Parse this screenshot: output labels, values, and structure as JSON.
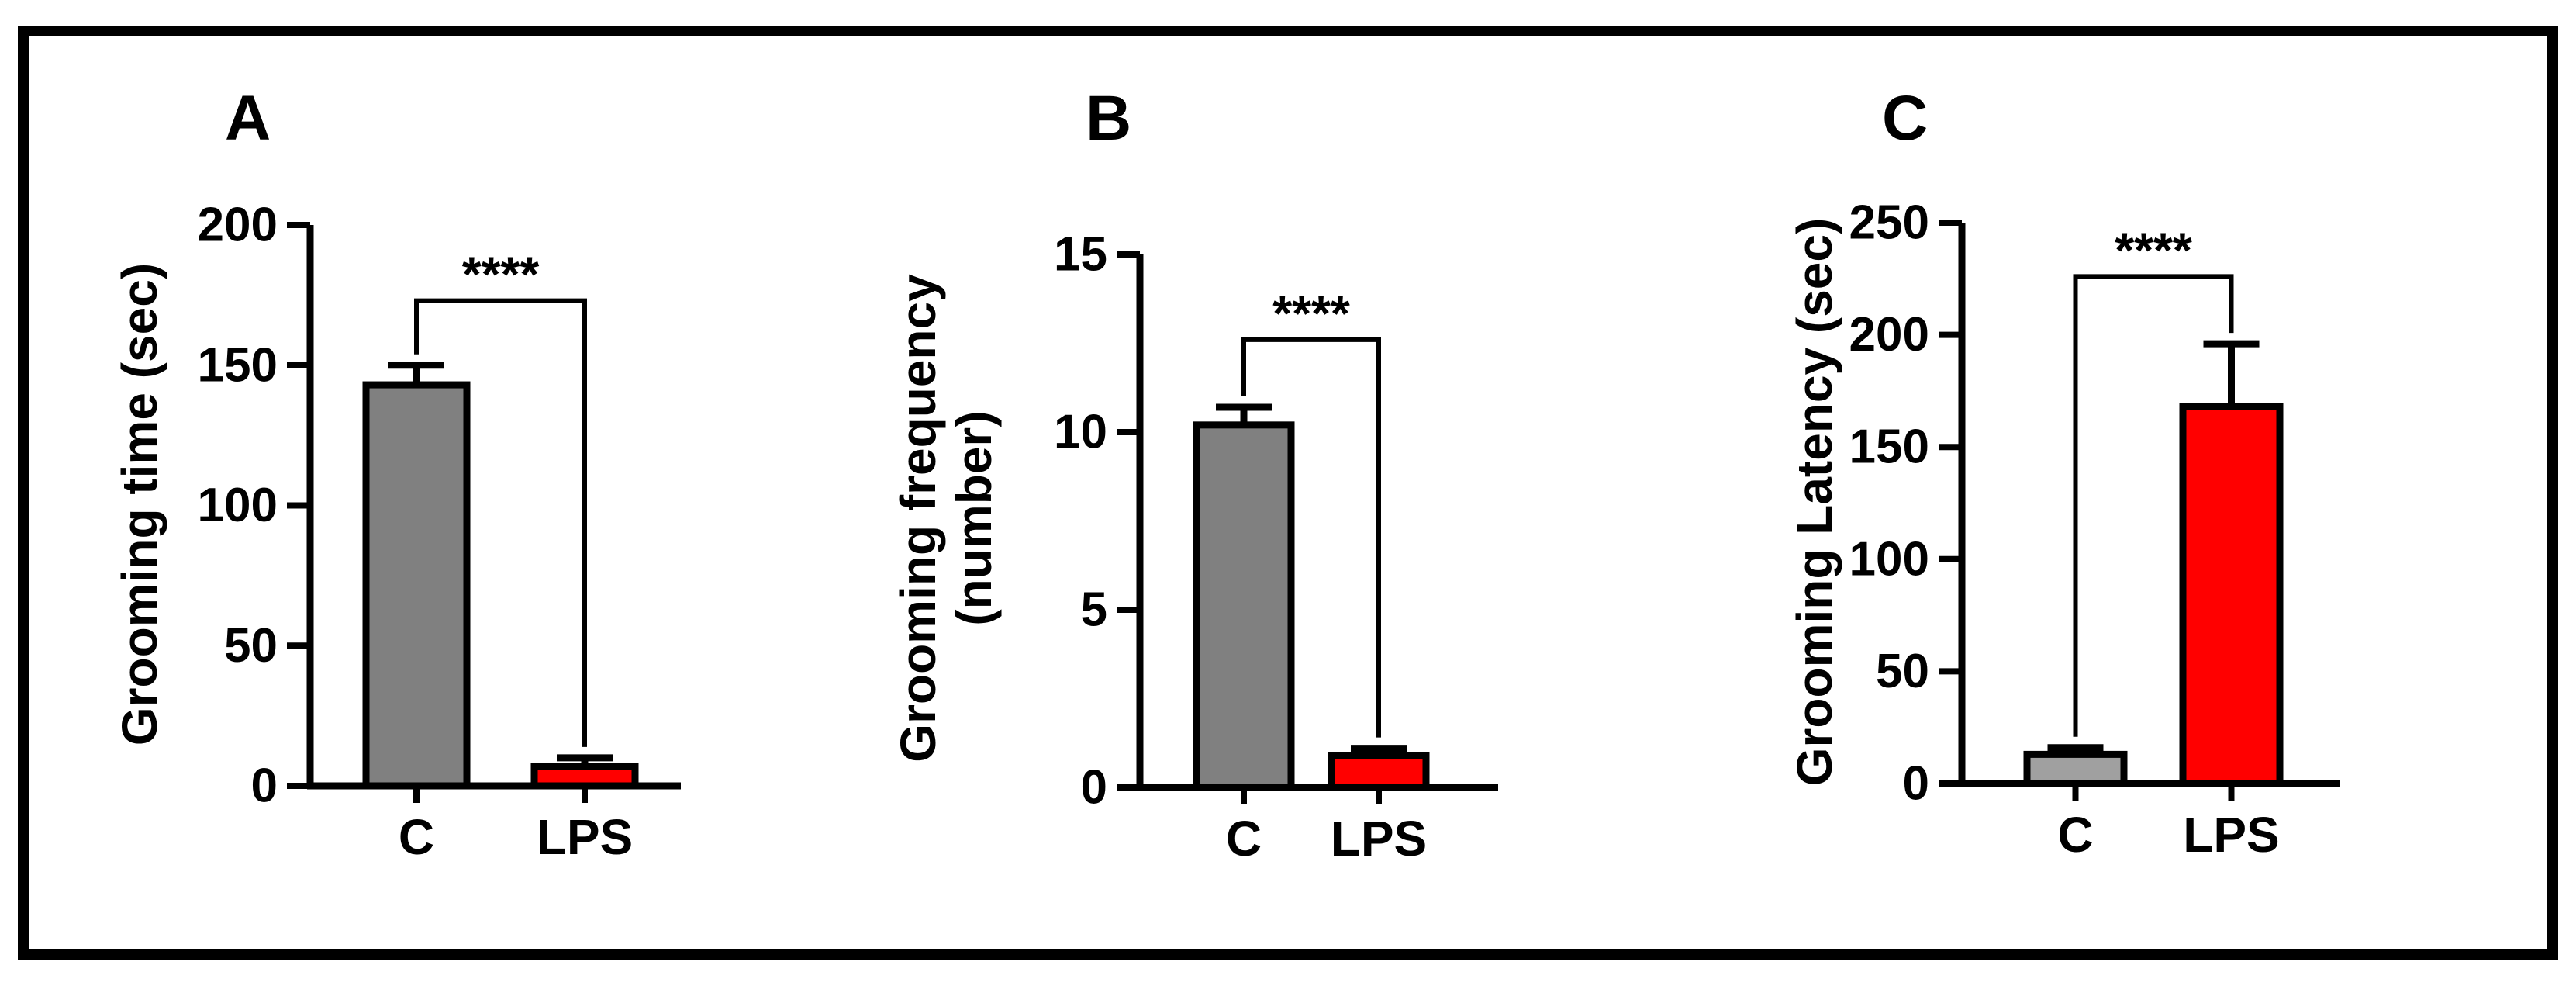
{
  "chart_data": [
    {
      "type": "bar",
      "panel_label": "A",
      "categories": [
        "C",
        "LPS"
      ],
      "values": [
        143,
        7
      ],
      "errors": [
        7,
        3
      ],
      "colors": [
        "#808080",
        "#ff0000"
      ],
      "ylabel": [
        "Grooming time (sec)"
      ],
      "ylim": [
        0,
        200
      ],
      "yticks": [
        0,
        50,
        100,
        150,
        200
      ],
      "significance": "****",
      "bracket_y": 173
    },
    {
      "type": "bar",
      "panel_label": "B",
      "categories": [
        "C",
        "LPS"
      ],
      "values": [
        10.2,
        0.9
      ],
      "errors": [
        0.5,
        0.2
      ],
      "colors": [
        "#808080",
        "#ff0000"
      ],
      "ylabel": [
        "Grooming frequency",
        "(number)"
      ],
      "ylim": [
        0,
        15
      ],
      "yticks": [
        0,
        5,
        10,
        15
      ],
      "significance": "****",
      "bracket_y": 12.6
    },
    {
      "type": "bar",
      "panel_label": "C",
      "categories": [
        "C",
        "LPS"
      ],
      "values": [
        13,
        168
      ],
      "errors": [
        3,
        28
      ],
      "colors": [
        "#a0a0a0",
        "#ff0000"
      ],
      "ylabel": [
        "Grooming Latency (sec)"
      ],
      "ylim": [
        0,
        250
      ],
      "yticks": [
        0,
        50,
        100,
        150,
        200,
        250
      ],
      "significance": "****",
      "bracket_y": 226
    }
  ]
}
